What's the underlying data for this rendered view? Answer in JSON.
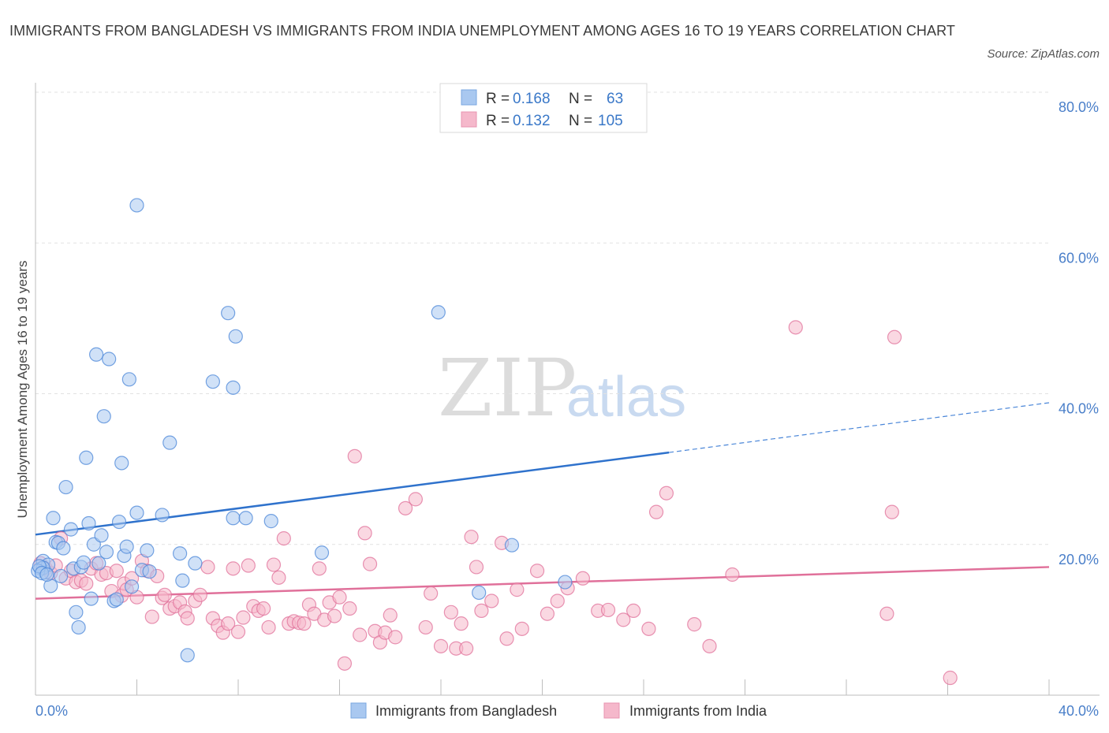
{
  "title": "IMMIGRANTS FROM BANGLADESH VS IMMIGRANTS FROM INDIA UNEMPLOYMENT AMONG AGES 16 TO 19 YEARS CORRELATION CHART",
  "source": "Source: ZipAtlas.com",
  "watermark": {
    "zip": "ZIP",
    "atlas": "atlas"
  },
  "legend": {
    "r_label": "R =",
    "n_label": "N =",
    "rows": [
      {
        "r": "0.168",
        "n": "63",
        "color": "#a9c8f0"
      },
      {
        "r": "0.132",
        "n": "105",
        "color": "#f5b8cb"
      }
    ]
  },
  "bottom_legend": [
    {
      "label": "Immigrants from Bangladesh",
      "color": "#a9c8f0"
    },
    {
      "label": "Immigrants from India",
      "color": "#f5b8cb"
    }
  ],
  "chart_data": {
    "type": "scatter",
    "title": "IMMIGRANTS FROM BANGLADESH VS IMMIGRANTS FROM INDIA UNEMPLOYMENT AMONG AGES 16 TO 19 YEARS CORRELATION CHART",
    "xlabel": "",
    "ylabel": "Unemployment Among Ages 16 to 19 years",
    "xlim": [
      0,
      40
    ],
    "ylim": [
      0,
      80
    ],
    "x_tick_labels": [
      "0.0%",
      "40.0%"
    ],
    "y_ticks": [
      20,
      40,
      60,
      80
    ],
    "y_tick_labels": [
      "20.0%",
      "40.0%",
      "60.0%",
      "80.0%"
    ],
    "grid": true,
    "legend_position": "top-center",
    "series": [
      {
        "name": "Immigrants from Bangladesh",
        "color": "#4a86d8",
        "fill": "#a9c8f0",
        "r": 0.168,
        "n": 63,
        "trend": {
          "x": [
            0,
            25
          ],
          "y": [
            21.3,
            32.2
          ],
          "dashed_to": [
            40,
            38.8
          ]
        },
        "points": [
          [
            0.2,
            16.8
          ],
          [
            0.3,
            17.8
          ],
          [
            0.4,
            16.3
          ],
          [
            0.5,
            17.3
          ],
          [
            0.3,
            16.9
          ],
          [
            0.6,
            14.5
          ],
          [
            0.7,
            23.5
          ],
          [
            0.8,
            20.3
          ],
          [
            0.9,
            20.2
          ],
          [
            1.0,
            15.8
          ],
          [
            1.1,
            19.5
          ],
          [
            1.2,
            27.6
          ],
          [
            1.4,
            22.0
          ],
          [
            1.5,
            16.8
          ],
          [
            1.6,
            11.0
          ],
          [
            1.7,
            9.0
          ],
          [
            1.8,
            17.0
          ],
          [
            1.9,
            17.6
          ],
          [
            2.0,
            31.5
          ],
          [
            2.1,
            22.8
          ],
          [
            2.2,
            12.8
          ],
          [
            2.3,
            20.0
          ],
          [
            2.4,
            45.2
          ],
          [
            2.5,
            17.5
          ],
          [
            2.6,
            21.2
          ],
          [
            2.7,
            37.0
          ],
          [
            2.8,
            19.0
          ],
          [
            2.9,
            44.6
          ],
          [
            3.1,
            12.5
          ],
          [
            3.2,
            12.7
          ],
          [
            3.3,
            23.0
          ],
          [
            3.4,
            30.8
          ],
          [
            3.5,
            18.5
          ],
          [
            3.6,
            19.7
          ],
          [
            3.7,
            41.9
          ],
          [
            3.8,
            14.4
          ],
          [
            4.0,
            65.0
          ],
          [
            4.0,
            24.2
          ],
          [
            4.2,
            16.6
          ],
          [
            4.4,
            19.2
          ],
          [
            4.5,
            16.4
          ],
          [
            5.0,
            23.9
          ],
          [
            5.3,
            33.5
          ],
          [
            5.7,
            18.8
          ],
          [
            5.8,
            15.2
          ],
          [
            6.0,
            5.3
          ],
          [
            6.3,
            17.5
          ],
          [
            7.0,
            41.6
          ],
          [
            7.6,
            50.7
          ],
          [
            7.8,
            40.8
          ],
          [
            7.8,
            23.5
          ],
          [
            7.9,
            47.6
          ],
          [
            8.3,
            23.5
          ],
          [
            9.3,
            23.1
          ],
          [
            11.3,
            18.9
          ],
          [
            15.9,
            50.8
          ],
          [
            17.5,
            13.6
          ],
          [
            18.8,
            19.9
          ],
          [
            20.9,
            15.0
          ],
          [
            0.1,
            16.5
          ],
          [
            0.15,
            17.1
          ],
          [
            0.25,
            16.2
          ],
          [
            0.45,
            16.0
          ]
        ]
      },
      {
        "name": "Immigrants from India",
        "color": "#e0709a",
        "fill": "#f5b8cb",
        "r": 0.132,
        "n": 105,
        "trend": {
          "x": [
            0,
            40
          ],
          "y": [
            12.8,
            17.0
          ]
        },
        "points": [
          [
            0.2,
            17.5
          ],
          [
            0.4,
            16.8
          ],
          [
            0.6,
            16.2
          ],
          [
            0.8,
            17.2
          ],
          [
            1.0,
            20.8
          ],
          [
            1.2,
            15.5
          ],
          [
            1.4,
            16.5
          ],
          [
            1.6,
            15.0
          ],
          [
            1.8,
            15.2
          ],
          [
            2.0,
            14.8
          ],
          [
            2.2,
            16.8
          ],
          [
            2.4,
            17.5
          ],
          [
            2.6,
            16.0
          ],
          [
            2.8,
            16.2
          ],
          [
            3.0,
            13.8
          ],
          [
            3.2,
            16.5
          ],
          [
            3.4,
            13.2
          ],
          [
            3.5,
            14.8
          ],
          [
            3.6,
            14.0
          ],
          [
            3.8,
            15.5
          ],
          [
            4.0,
            13.0
          ],
          [
            4.2,
            17.8
          ],
          [
            4.4,
            16.5
          ],
          [
            4.6,
            10.4
          ],
          [
            4.8,
            15.8
          ],
          [
            5.0,
            12.9
          ],
          [
            5.1,
            13.3
          ],
          [
            5.3,
            11.5
          ],
          [
            5.5,
            11.8
          ],
          [
            5.7,
            12.3
          ],
          [
            5.9,
            11.1
          ],
          [
            6.0,
            10.2
          ],
          [
            6.3,
            12.5
          ],
          [
            6.5,
            13.3
          ],
          [
            6.8,
            17.0
          ],
          [
            7.0,
            10.2
          ],
          [
            7.2,
            9.2
          ],
          [
            7.4,
            8.3
          ],
          [
            7.6,
            9.5
          ],
          [
            7.8,
            16.8
          ],
          [
            8.0,
            8.4
          ],
          [
            8.2,
            10.3
          ],
          [
            8.4,
            17.2
          ],
          [
            8.6,
            11.8
          ],
          [
            8.8,
            11.2
          ],
          [
            9.0,
            11.5
          ],
          [
            9.2,
            9.0
          ],
          [
            9.4,
            17.3
          ],
          [
            9.6,
            15.6
          ],
          [
            9.8,
            20.8
          ],
          [
            10.0,
            9.5
          ],
          [
            10.2,
            9.8
          ],
          [
            10.4,
            9.6
          ],
          [
            10.6,
            9.5
          ],
          [
            10.8,
            12.0
          ],
          [
            11.0,
            10.8
          ],
          [
            11.2,
            16.8
          ],
          [
            11.4,
            10.0
          ],
          [
            11.6,
            12.3
          ],
          [
            11.8,
            10.5
          ],
          [
            12.0,
            13.0
          ],
          [
            12.2,
            4.2
          ],
          [
            12.4,
            11.5
          ],
          [
            12.6,
            31.7
          ],
          [
            12.8,
            8.0
          ],
          [
            13.0,
            21.5
          ],
          [
            13.2,
            17.4
          ],
          [
            13.4,
            8.5
          ],
          [
            13.6,
            7.0
          ],
          [
            13.8,
            8.3
          ],
          [
            14.0,
            10.6
          ],
          [
            14.2,
            7.7
          ],
          [
            14.6,
            24.8
          ],
          [
            15.0,
            26.0
          ],
          [
            15.4,
            9.0
          ],
          [
            15.6,
            13.5
          ],
          [
            16.0,
            6.5
          ],
          [
            16.4,
            11.0
          ],
          [
            16.6,
            6.2
          ],
          [
            16.8,
            9.5
          ],
          [
            17.0,
            6.2
          ],
          [
            17.2,
            21.0
          ],
          [
            17.4,
            17.0
          ],
          [
            17.6,
            11.2
          ],
          [
            18.0,
            12.5
          ],
          [
            18.4,
            20.2
          ],
          [
            18.6,
            7.5
          ],
          [
            19.0,
            14.0
          ],
          [
            19.2,
            8.8
          ],
          [
            19.8,
            16.5
          ],
          [
            20.2,
            10.8
          ],
          [
            20.6,
            12.5
          ],
          [
            21.0,
            14.2
          ],
          [
            21.6,
            15.5
          ],
          [
            22.2,
            11.2
          ],
          [
            22.6,
            11.3
          ],
          [
            23.2,
            10.0
          ],
          [
            23.6,
            11.2
          ],
          [
            24.2,
            8.8
          ],
          [
            24.5,
            24.3
          ],
          [
            24.9,
            26.8
          ],
          [
            26.0,
            9.4
          ],
          [
            26.6,
            6.5
          ],
          [
            27.5,
            16.0
          ],
          [
            30.0,
            48.8
          ]
        ]
      }
    ],
    "extra_points_india": [
      [
        33.9,
        47.5
      ],
      [
        33.8,
        24.3
      ],
      [
        33.6,
        10.8
      ],
      [
        36.1,
        2.3
      ]
    ]
  }
}
